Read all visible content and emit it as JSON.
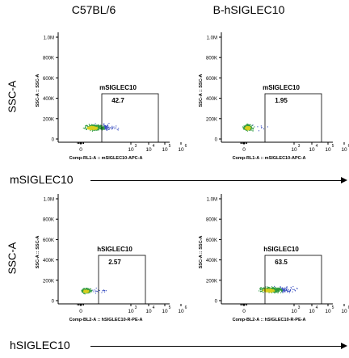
{
  "columns": [
    "C57BL/6",
    "B-hSIGLEC10"
  ],
  "row_labels": [
    "SSC-A",
    "SSC-A"
  ],
  "axis_captions": [
    "mSIGLEC10",
    "hSIGLEC10"
  ],
  "chart_data": [
    {
      "type": "scatter",
      "sample": "C57BL/6",
      "xlabel": "Comp-RL1-A :: mSIGLEC10-APC-A",
      "ylabel": "SSC-A :: SSC-A",
      "yticks": [
        "0",
        "200K",
        "400K",
        "600K",
        "800K",
        "1.0M"
      ],
      "xticks": [
        "0",
        "10",
        "10",
        "10",
        "10"
      ],
      "xtick_exps": [
        "",
        "3",
        "4",
        "5",
        "6"
      ],
      "gate": {
        "name": "mSIGLEC10",
        "percent": "42.7"
      },
      "population": {
        "x_center": "~10^3",
        "ssc_center": "150K"
      }
    },
    {
      "type": "scatter",
      "sample": "B-hSIGLEC10",
      "xlabel": "Comp-RL1-A :: mSIGLEC10-APC-A",
      "ylabel": "SSC-A :: SSC-A",
      "yticks": [
        "0",
        "200K",
        "400K",
        "600K",
        "800K",
        "1.0M"
      ],
      "xticks": [
        "0",
        "10",
        "10",
        "10",
        "10"
      ],
      "xtick_exps": [
        "",
        "3",
        "4",
        "5",
        "6"
      ],
      "gate": {
        "name": "mSIGLEC10",
        "percent": "1.95"
      },
      "population": {
        "x_center": "~10^2",
        "ssc_center": "150K"
      }
    },
    {
      "type": "scatter",
      "sample": "C57BL/6",
      "xlabel": "Comp-BL2-A :: hSIGLEC10-R-PE-A",
      "ylabel": "SSC-A :: SSC-A",
      "yticks": [
        "0",
        "200K",
        "400K",
        "600K",
        "800K",
        "1.0M"
      ],
      "xticks": [
        "0",
        "10",
        "10",
        "10",
        "10"
      ],
      "xtick_exps": [
        "",
        "3",
        "4",
        "5",
        "6"
      ],
      "gate": {
        "name": "hSIGLEC10",
        "percent": "2.57"
      },
      "population": {
        "x_center": "~0",
        "ssc_center": "130K"
      }
    },
    {
      "type": "scatter",
      "sample": "B-hSIGLEC10",
      "xlabel": "Comp-BL2-A :: hSIGLEC10-R-PE-A",
      "ylabel": "SSC-A :: SSC-A",
      "yticks": [
        "0",
        "200K",
        "400K",
        "600K",
        "800K",
        "1.0M"
      ],
      "xticks": [
        "0",
        "10",
        "10",
        "10",
        "10"
      ],
      "xtick_exps": [
        "",
        "3",
        "4",
        "5",
        "6"
      ],
      "gate": {
        "name": "hSIGLEC10",
        "percent": "63.5"
      },
      "population": {
        "x_center": "~10^3",
        "ssc_center": "140K"
      }
    }
  ],
  "colors": {
    "dots": "#3a4fc0",
    "dense_dots": "#2e9a3e",
    "hot_dots": "#d8d01e",
    "gate": "#000000"
  }
}
